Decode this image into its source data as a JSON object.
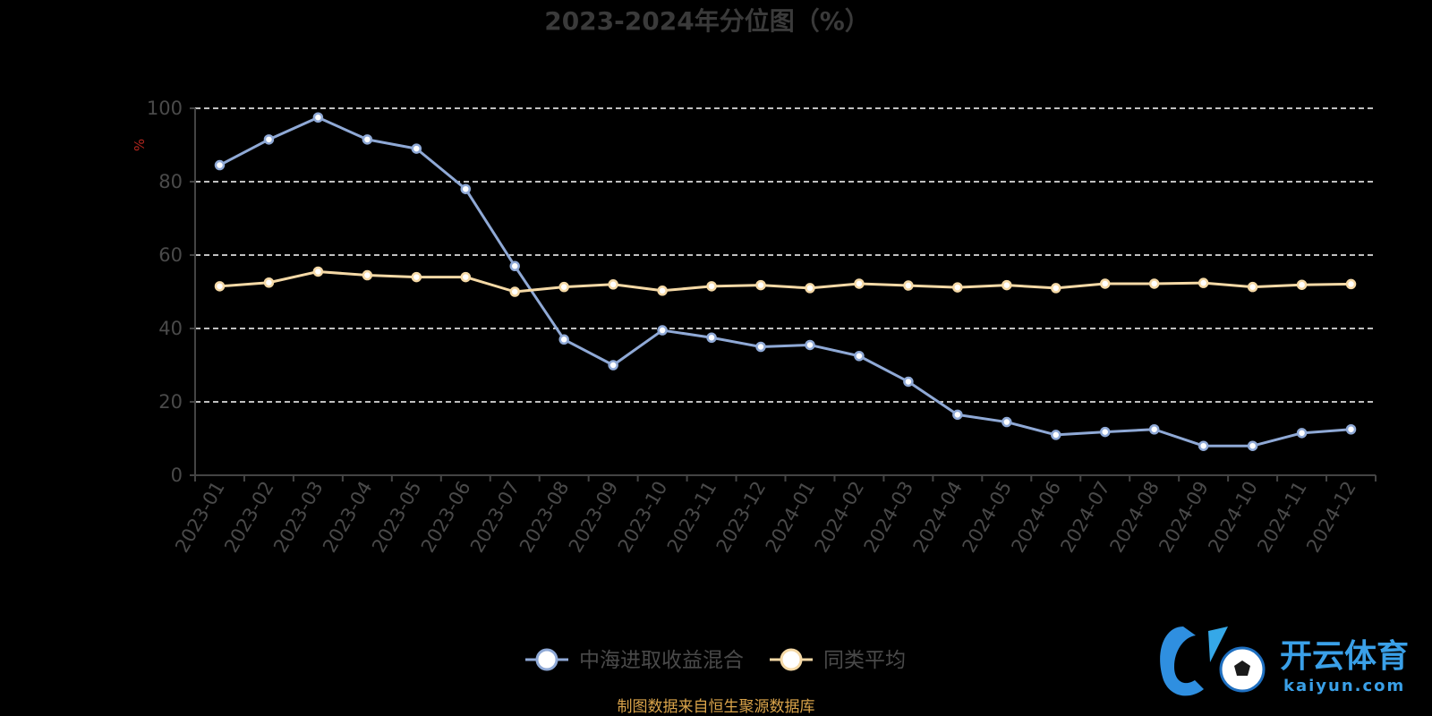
{
  "colors": {
    "background": "#000000",
    "series_fund": "#8fa9d6",
    "series_avg": "#f5d9a6",
    "grid": "#ffffff",
    "axis": "#444444",
    "unit": "#b3261e",
    "source": "#d9a34a",
    "logo": "#3aa0e8"
  },
  "source_note": "制图数据来自恒生聚源数据库",
  "watermark": {
    "brand": "开云体育",
    "domain": "kaiyun.com"
  },
  "chart_data": {
    "type": "line",
    "title": "2023-2024年分位图（%）",
    "ylabel": "%",
    "xlabel": "",
    "ylim": [
      0,
      100
    ],
    "yticks": [
      0,
      20,
      40,
      60,
      80,
      100
    ],
    "grid": "horizontal dashed",
    "legend_position": "bottom",
    "categories": [
      "2023-01",
      "2023-02",
      "2023-03",
      "2023-04",
      "2023-05",
      "2023-06",
      "2023-07",
      "2023-08",
      "2023-09",
      "2023-10",
      "2023-11",
      "2023-12",
      "2024-01",
      "2024-02",
      "2024-03",
      "2024-04",
      "2024-05",
      "2024-06",
      "2024-07",
      "2024-08",
      "2024-09",
      "2024-10",
      "2024-11",
      "2024-12"
    ],
    "series": [
      {
        "name": "中海进取收益混合",
        "color": "#8fa9d6",
        "values": [
          84.5,
          91.5,
          97.5,
          91.5,
          89.0,
          78.0,
          57.0,
          37.0,
          30.0,
          39.5,
          37.5,
          35.0,
          35.5,
          32.5,
          25.5,
          16.5,
          14.5,
          11.0,
          11.8,
          12.5,
          8.0,
          8.0,
          11.5,
          12.5
        ]
      },
      {
        "name": "同类平均",
        "color": "#f5d9a6",
        "values": [
          51.5,
          52.5,
          55.5,
          54.5,
          54.0,
          54.0,
          50.0,
          51.3,
          52.0,
          50.3,
          51.5,
          51.8,
          51.0,
          52.2,
          51.7,
          51.2,
          51.8,
          51.0,
          52.2,
          52.2,
          52.4,
          51.3,
          51.9,
          52.1
        ]
      }
    ]
  }
}
